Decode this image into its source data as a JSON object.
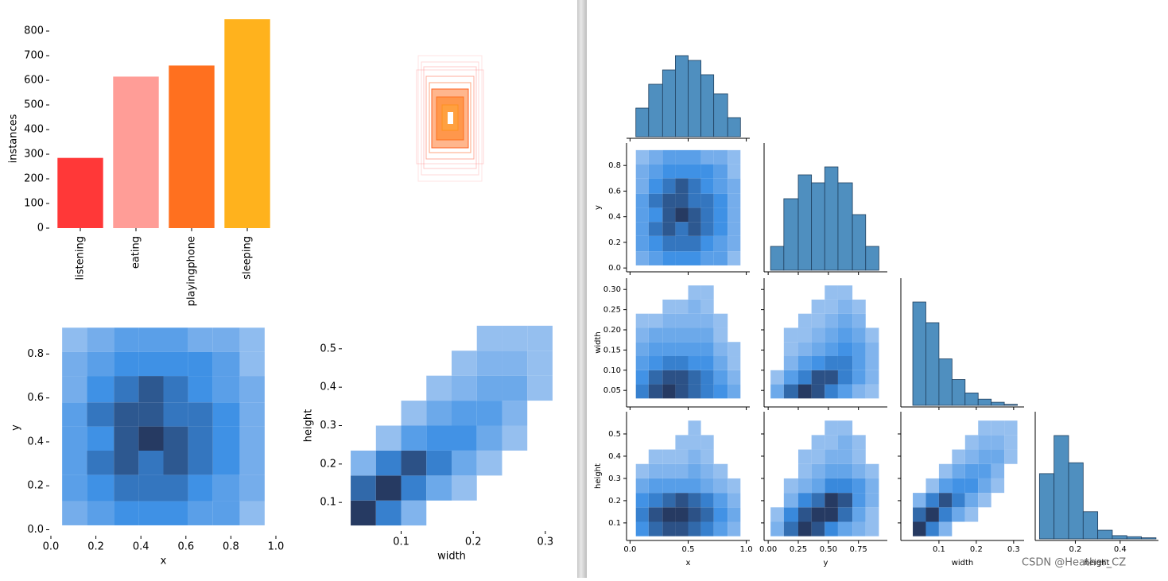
{
  "chart_data": [
    {
      "type": "bar",
      "ylabel": "instances",
      "categories": [
        "listening",
        "eating",
        "playingphone",
        "sleeping"
      ],
      "values": [
        285,
        615,
        660,
        848
      ],
      "colors": [
        "#ff3838",
        "#ff9d97",
        "#ff701f",
        "#ffb21d"
      ],
      "ylim": [
        0,
        855
      ],
      "yticks": [
        0,
        100,
        200,
        300,
        400,
        500,
        600,
        700,
        800
      ]
    },
    {
      "type": "hist2d",
      "pair": 0,
      "xlim": [
        0,
        1
      ],
      "ylim": [
        -0.02,
        0.95
      ],
      "xticks": [
        {
          "value": 0,
          "label": "0.0"
        },
        0.2,
        0.4,
        0.6,
        0.8,
        {
          "value": 1,
          "label": "1.0"
        }
      ],
      "yticks": [
        {
          "value": 0,
          "label": "0.0"
        },
        0.2,
        0.4,
        0.6,
        0.8
      ]
    },
    {
      "type": "hist2d",
      "pair": 5,
      "xlim": [
        0.02,
        0.32
      ],
      "ylim": [
        0.03,
        0.57
      ],
      "xticks": [
        0.1,
        0.2,
        0.3
      ],
      "yticks": [
        0.1,
        0.2,
        0.3,
        0.4,
        0.5
      ]
    },
    {
      "type": "pairplot",
      "watermark": "CSDN @Heather_CZ",
      "variables": [
        {
          "name": "x",
          "bins": [
            0.05,
            0.16,
            0.28,
            0.39,
            0.5,
            0.61,
            0.72,
            0.84,
            0.95
          ],
          "counts": [
            30,
            55,
            70,
            85,
            80,
            65,
            45,
            20
          ],
          "col_lim": [
            -0.03,
            1.03
          ],
          "col_ticks": [
            {
              "value": 0,
              "label": "0.0"
            },
            0.5,
            {
              "value": 1,
              "label": "1.0"
            }
          ]
        },
        {
          "name": "y",
          "bins": [
            0.02,
            0.13,
            0.25,
            0.36,
            0.47,
            0.58,
            0.7,
            0.81,
            0.92
          ],
          "counts": [
            15,
            45,
            60,
            55,
            65,
            55,
            35,
            15
          ],
          "col_lim": [
            -0.034,
            0.99
          ],
          "col_ticks": [
            {
              "value": 0,
              "label": "0.00"
            },
            0.25,
            {
              "value": 0.5,
              "label": "0.50"
            },
            0.75
          ],
          "row_lim": [
            -0.03,
            0.975
          ],
          "row_ticks": [
            {
              "value": 0,
              "label": "0.0"
            },
            0.2,
            0.4,
            0.6,
            0.8
          ]
        },
        {
          "name": "width",
          "bins": [
            0.03,
            0.065,
            0.1,
            0.135,
            0.17,
            0.205,
            0.24,
            0.275,
            0.31
          ],
          "counts": [
            100,
            80,
            45,
            25,
            12,
            6,
            3,
            1
          ],
          "col_lim": [
            -0.002,
            0.328
          ],
          "col_ticks": [
            0.1,
            0.2,
            0.3
          ],
          "row_lim": [
            0.009,
            0.328
          ],
          "row_ticks": [
            0.05,
            {
              "value": 0.1,
              "label": "0.10"
            },
            0.15,
            {
              "value": 0.2,
              "label": "0.20"
            },
            0.25,
            {
              "value": 0.3,
              "label": "0.30"
            }
          ]
        },
        {
          "name": "height",
          "bins": [
            0.04,
            0.105,
            0.17,
            0.235,
            0.3,
            0.365,
            0.43,
            0.495,
            0.56
          ],
          "counts": [
            60,
            95,
            70,
            25,
            8,
            3,
            2,
            1
          ],
          "col_lim": [
            0.021,
            0.571
          ],
          "col_ticks": [
            0.2,
            0.4
          ],
          "row_lim": [
            0.021,
            0.6
          ],
          "row_ticks": [
            0.1,
            0.2,
            0.3,
            0.4,
            0.5
          ]
        }
      ],
      "pairs": [
        {
          "col": 0,
          "row": 1,
          "counts": [
            [
              2,
              3,
              4,
              4,
              4,
              3,
              3,
              1
            ],
            [
              3,
              4,
              5,
              5,
              5,
              4,
              3,
              2
            ],
            [
              3,
              5,
              6,
              5,
              6,
              5,
              4,
              2
            ],
            [
              3,
              4,
              6,
              7,
              6,
              5,
              4,
              2
            ],
            [
              3,
              5,
              6,
              6,
              5,
              5,
              4,
              2
            ],
            [
              2,
              4,
              5,
              6,
              5,
              4,
              3,
              2
            ],
            [
              2,
              3,
              4,
              4,
              4,
              4,
              3,
              1
            ],
            [
              1,
              2,
              3,
              3,
              3,
              2,
              2,
              1
            ]
          ]
        },
        {
          "col": 0,
          "row": 2,
          "counts": [
            [
              6,
              8,
              9,
              8,
              7,
              6,
              5,
              3
            ],
            [
              5,
              7,
              8,
              8,
              7,
              6,
              4,
              2
            ],
            [
              4,
              5,
              6,
              6,
              5,
              5,
              3,
              1
            ],
            [
              3,
              4,
              4,
              4,
              4,
              4,
              2,
              1
            ],
            [
              2,
              3,
              3,
              3,
              3,
              3,
              1,
              0
            ],
            [
              1,
              1,
              2,
              2,
              2,
              2,
              1,
              0
            ],
            [
              0,
              0,
              1,
              1,
              2,
              1,
              0,
              0
            ],
            [
              0,
              0,
              0,
              0,
              1,
              1,
              0,
              0
            ]
          ]
        },
        {
          "col": 0,
          "row": 3,
          "counts": [
            [
              5,
              7,
              8,
              8,
              7,
              6,
              4,
              2
            ],
            [
              6,
              8,
              9,
              9,
              8,
              7,
              5,
              3
            ],
            [
              5,
              6,
              7,
              8,
              7,
              6,
              4,
              2
            ],
            [
              3,
              4,
              4,
              4,
              4,
              3,
              2,
              1
            ],
            [
              1,
              2,
              2,
              2,
              3,
              2,
              1,
              0
            ],
            [
              0,
              1,
              1,
              1,
              2,
              1,
              0,
              0
            ],
            [
              0,
              0,
              0,
              1,
              1,
              1,
              0,
              0
            ],
            [
              0,
              0,
              0,
              0,
              1,
              0,
              0,
              0
            ]
          ]
        },
        {
          "col": 1,
          "row": 2,
          "counts": [
            [
              3,
              7,
              9,
              8,
              6,
              4,
              2,
              1
            ],
            [
              1,
              4,
              6,
              8,
              8,
              6,
              4,
              2
            ],
            [
              0,
              2,
              4,
              5,
              6,
              6,
              4,
              2
            ],
            [
              0,
              1,
              2,
              3,
              4,
              5,
              4,
              2
            ],
            [
              0,
              1,
              1,
              2,
              3,
              4,
              3,
              1
            ],
            [
              0,
              0,
              1,
              1,
              2,
              3,
              2,
              0
            ],
            [
              0,
              0,
              0,
              1,
              1,
              2,
              1,
              0
            ],
            [
              0,
              0,
              0,
              0,
              1,
              1,
              0,
              0
            ]
          ]
        },
        {
          "col": 1,
          "row": 3,
          "counts": [
            [
              2,
              6,
              8,
              7,
              5,
              3,
              2,
              1
            ],
            [
              1,
              5,
              7,
              8,
              8,
              6,
              3,
              1
            ],
            [
              0,
              2,
              5,
              6,
              8,
              7,
              4,
              2
            ],
            [
              0,
              1,
              2,
              3,
              5,
              5,
              4,
              2
            ],
            [
              0,
              0,
              1,
              2,
              3,
              3,
              2,
              1
            ],
            [
              0,
              0,
              1,
              1,
              2,
              2,
              1,
              0
            ],
            [
              0,
              0,
              0,
              1,
              1,
              2,
              1,
              0
            ],
            [
              0,
              0,
              0,
              0,
              1,
              1,
              0,
              0
            ]
          ]
        },
        {
          "col": 2,
          "row": 3,
          "counts": [
            [
              9,
              6,
              2,
              0,
              0,
              0,
              0,
              0
            ],
            [
              7,
              9,
              6,
              3,
              1,
              0,
              0,
              0
            ],
            [
              2,
              6,
              8,
              6,
              3,
              1,
              0,
              0
            ],
            [
              0,
              1,
              4,
              5,
              5,
              3,
              1,
              0
            ],
            [
              0,
              0,
              1,
              3,
              4,
              4,
              2,
              0
            ],
            [
              0,
              0,
              0,
              1,
              2,
              3,
              3,
              1
            ],
            [
              0,
              0,
              0,
              0,
              1,
              2,
              2,
              1
            ],
            [
              0,
              0,
              0,
              0,
              0,
              1,
              1,
              1
            ]
          ]
        }
      ]
    }
  ]
}
